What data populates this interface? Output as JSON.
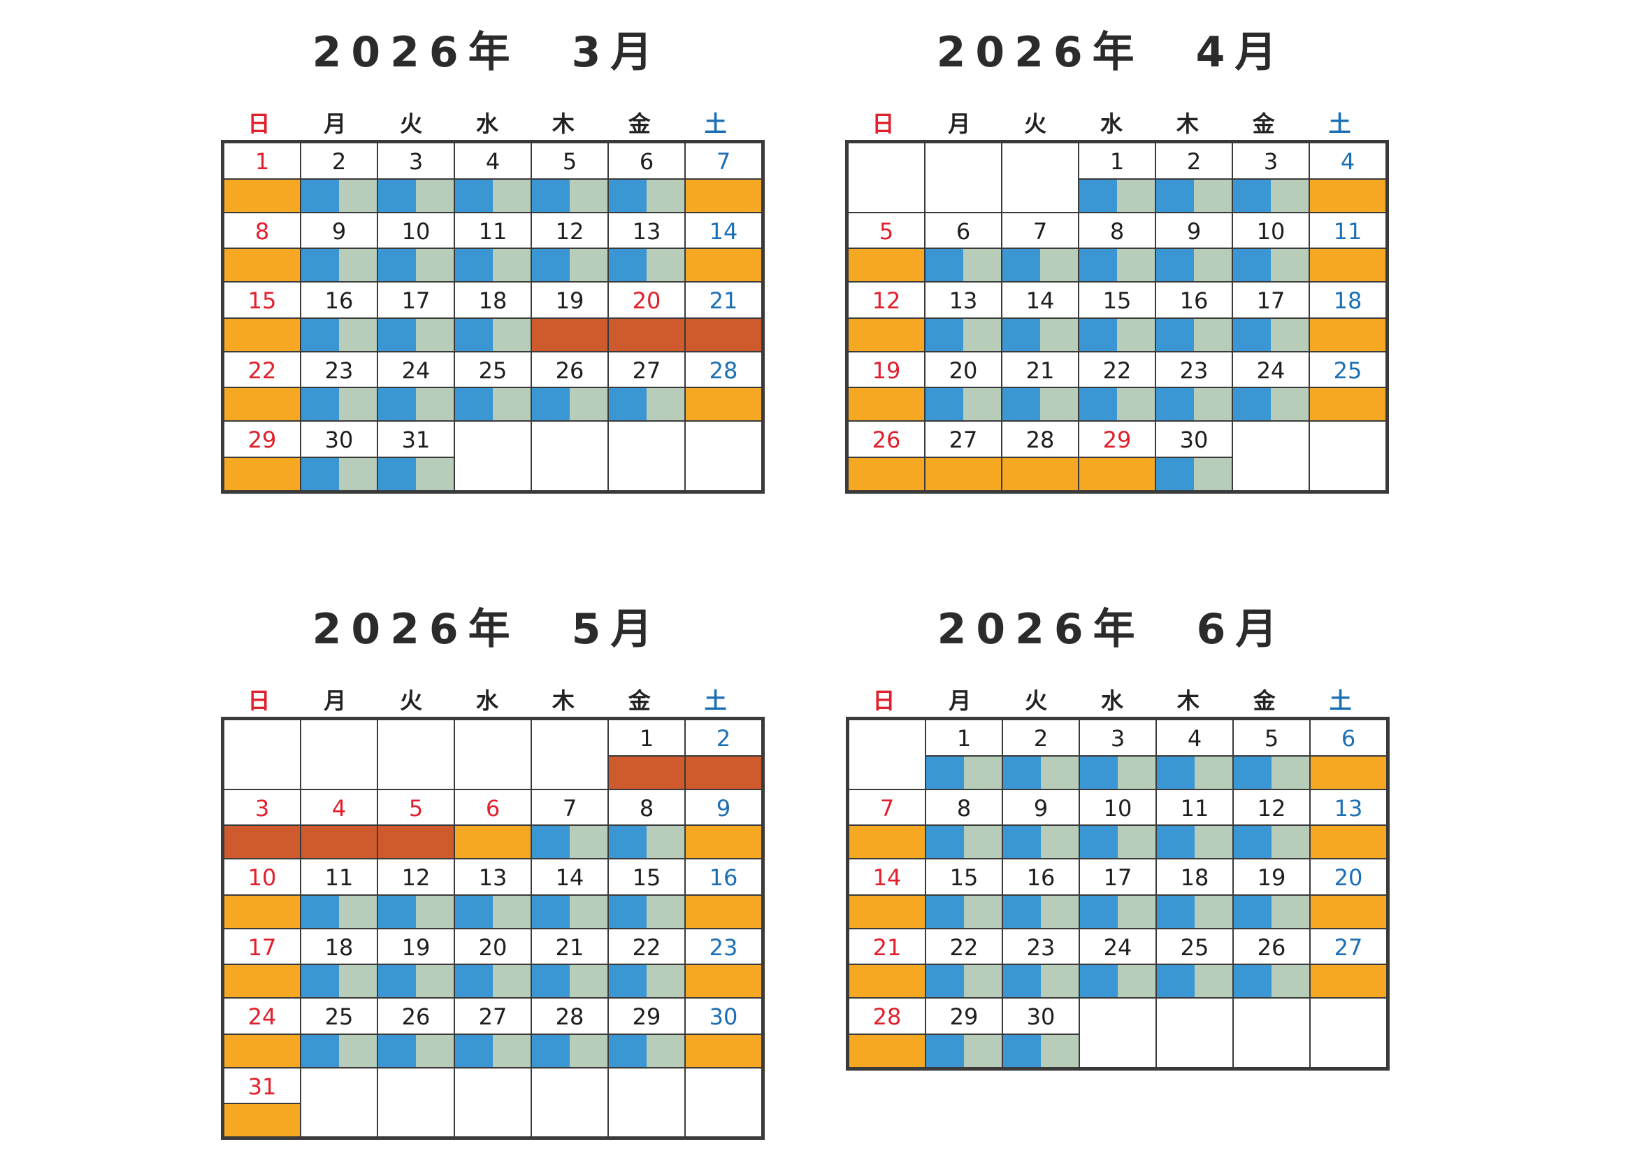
{
  "weekdays": [
    {
      "label": "日",
      "kind": "sun"
    },
    {
      "label": "月",
      "kind": ""
    },
    {
      "label": "火",
      "kind": ""
    },
    {
      "label": "水",
      "kind": ""
    },
    {
      "label": "木",
      "kind": ""
    },
    {
      "label": "金",
      "kind": ""
    },
    {
      "label": "土",
      "kind": "sat"
    }
  ],
  "colors": {
    "holiday": "#f7a823",
    "special": "#cf5a2e",
    "workday_a": "#3a97d4",
    "workday_b": "#b7cdb9",
    "sunday_text": "#e0202c",
    "saturday_text": "#1b6fb5"
  },
  "months": [
    {
      "id": "mar",
      "title": "2026年　3月",
      "days": [
        {
          "d": "1",
          "t": "sun",
          "b": "orange"
        },
        {
          "d": "2",
          "t": "",
          "b": "split"
        },
        {
          "d": "3",
          "t": "",
          "b": "split"
        },
        {
          "d": "4",
          "t": "",
          "b": "split"
        },
        {
          "d": "5",
          "t": "",
          "b": "split"
        },
        {
          "d": "6",
          "t": "",
          "b": "split"
        },
        {
          "d": "7",
          "t": "sat",
          "b": "orange"
        },
        {
          "d": "8",
          "t": "sun",
          "b": "orange"
        },
        {
          "d": "9",
          "t": "",
          "b": "split"
        },
        {
          "d": "10",
          "t": "",
          "b": "split"
        },
        {
          "d": "11",
          "t": "",
          "b": "split"
        },
        {
          "d": "12",
          "t": "",
          "b": "split"
        },
        {
          "d": "13",
          "t": "",
          "b": "split"
        },
        {
          "d": "14",
          "t": "sat",
          "b": "orange"
        },
        {
          "d": "15",
          "t": "sun",
          "b": "orange"
        },
        {
          "d": "16",
          "t": "",
          "b": "split"
        },
        {
          "d": "17",
          "t": "",
          "b": "split"
        },
        {
          "d": "18",
          "t": "",
          "b": "split"
        },
        {
          "d": "19",
          "t": "",
          "b": "red"
        },
        {
          "d": "20",
          "t": "sun",
          "b": "red"
        },
        {
          "d": "21",
          "t": "sat",
          "b": "red"
        },
        {
          "d": "22",
          "t": "sun",
          "b": "orange"
        },
        {
          "d": "23",
          "t": "",
          "b": "split"
        },
        {
          "d": "24",
          "t": "",
          "b": "split"
        },
        {
          "d": "25",
          "t": "",
          "b": "split"
        },
        {
          "d": "26",
          "t": "",
          "b": "split"
        },
        {
          "d": "27",
          "t": "",
          "b": "split"
        },
        {
          "d": "28",
          "t": "sat",
          "b": "orange"
        },
        {
          "d": "29",
          "t": "sun",
          "b": "orange"
        },
        {
          "d": "30",
          "t": "",
          "b": "split"
        },
        {
          "d": "31",
          "t": "",
          "b": "split"
        },
        {
          "d": "",
          "t": "",
          "b": ""
        },
        {
          "d": "",
          "t": "",
          "b": ""
        },
        {
          "d": "",
          "t": "",
          "b": ""
        },
        {
          "d": "",
          "t": "",
          "b": ""
        }
      ]
    },
    {
      "id": "apr",
      "title": "2026年　4月",
      "days": [
        {
          "d": "",
          "t": "",
          "b": ""
        },
        {
          "d": "",
          "t": "",
          "b": ""
        },
        {
          "d": "",
          "t": "",
          "b": ""
        },
        {
          "d": "1",
          "t": "",
          "b": "split"
        },
        {
          "d": "2",
          "t": "",
          "b": "split"
        },
        {
          "d": "3",
          "t": "",
          "b": "split"
        },
        {
          "d": "4",
          "t": "sat",
          "b": "orange"
        },
        {
          "d": "5",
          "t": "sun",
          "b": "orange"
        },
        {
          "d": "6",
          "t": "",
          "b": "split"
        },
        {
          "d": "7",
          "t": "",
          "b": "split"
        },
        {
          "d": "8",
          "t": "",
          "b": "split"
        },
        {
          "d": "9",
          "t": "",
          "b": "split"
        },
        {
          "d": "10",
          "t": "",
          "b": "split"
        },
        {
          "d": "11",
          "t": "sat",
          "b": "orange"
        },
        {
          "d": "12",
          "t": "sun",
          "b": "orange"
        },
        {
          "d": "13",
          "t": "",
          "b": "split"
        },
        {
          "d": "14",
          "t": "",
          "b": "split"
        },
        {
          "d": "15",
          "t": "",
          "b": "split"
        },
        {
          "d": "16",
          "t": "",
          "b": "split"
        },
        {
          "d": "17",
          "t": "",
          "b": "split"
        },
        {
          "d": "18",
          "t": "sat",
          "b": "orange"
        },
        {
          "d": "19",
          "t": "sun",
          "b": "orange"
        },
        {
          "d": "20",
          "t": "",
          "b": "split"
        },
        {
          "d": "21",
          "t": "",
          "b": "split"
        },
        {
          "d": "22",
          "t": "",
          "b": "split"
        },
        {
          "d": "23",
          "t": "",
          "b": "split"
        },
        {
          "d": "24",
          "t": "",
          "b": "split"
        },
        {
          "d": "25",
          "t": "sat",
          "b": "orange"
        },
        {
          "d": "26",
          "t": "sun",
          "b": "orange"
        },
        {
          "d": "27",
          "t": "",
          "b": "orange"
        },
        {
          "d": "28",
          "t": "",
          "b": "orange"
        },
        {
          "d": "29",
          "t": "sun",
          "b": "orange"
        },
        {
          "d": "30",
          "t": "",
          "b": "split"
        },
        {
          "d": "",
          "t": "",
          "b": ""
        },
        {
          "d": "",
          "t": "",
          "b": ""
        }
      ]
    },
    {
      "id": "may",
      "title": "2026年　5月",
      "days": [
        {
          "d": "",
          "t": "",
          "b": ""
        },
        {
          "d": "",
          "t": "",
          "b": ""
        },
        {
          "d": "",
          "t": "",
          "b": ""
        },
        {
          "d": "",
          "t": "",
          "b": ""
        },
        {
          "d": "",
          "t": "",
          "b": ""
        },
        {
          "d": "1",
          "t": "",
          "b": "red"
        },
        {
          "d": "2",
          "t": "sat",
          "b": "red"
        },
        {
          "d": "3",
          "t": "sun",
          "b": "red"
        },
        {
          "d": "4",
          "t": "sun",
          "b": "red"
        },
        {
          "d": "5",
          "t": "sun",
          "b": "red"
        },
        {
          "d": "6",
          "t": "sun",
          "b": "orange"
        },
        {
          "d": "7",
          "t": "",
          "b": "split"
        },
        {
          "d": "8",
          "t": "",
          "b": "split"
        },
        {
          "d": "9",
          "t": "sat",
          "b": "orange"
        },
        {
          "d": "10",
          "t": "sun",
          "b": "orange"
        },
        {
          "d": "11",
          "t": "",
          "b": "split"
        },
        {
          "d": "12",
          "t": "",
          "b": "split"
        },
        {
          "d": "13",
          "t": "",
          "b": "split"
        },
        {
          "d": "14",
          "t": "",
          "b": "split"
        },
        {
          "d": "15",
          "t": "",
          "b": "split"
        },
        {
          "d": "16",
          "t": "sat",
          "b": "orange"
        },
        {
          "d": "17",
          "t": "sun",
          "b": "orange"
        },
        {
          "d": "18",
          "t": "",
          "b": "split"
        },
        {
          "d": "19",
          "t": "",
          "b": "split"
        },
        {
          "d": "20",
          "t": "",
          "b": "split"
        },
        {
          "d": "21",
          "t": "",
          "b": "split"
        },
        {
          "d": "22",
          "t": "",
          "b": "split"
        },
        {
          "d": "23",
          "t": "sat",
          "b": "orange"
        },
        {
          "d": "24",
          "t": "sun",
          "b": "orange"
        },
        {
          "d": "25",
          "t": "",
          "b": "split"
        },
        {
          "d": "26",
          "t": "",
          "b": "split"
        },
        {
          "d": "27",
          "t": "",
          "b": "split"
        },
        {
          "d": "28",
          "t": "",
          "b": "split"
        },
        {
          "d": "29",
          "t": "",
          "b": "split"
        },
        {
          "d": "30",
          "t": "sat",
          "b": "orange"
        },
        {
          "d": "31",
          "t": "sun",
          "b": "orange"
        },
        {
          "d": "",
          "t": "",
          "b": ""
        },
        {
          "d": "",
          "t": "",
          "b": ""
        },
        {
          "d": "",
          "t": "",
          "b": ""
        },
        {
          "d": "",
          "t": "",
          "b": ""
        },
        {
          "d": "",
          "t": "",
          "b": ""
        },
        {
          "d": "",
          "t": "",
          "b": ""
        }
      ]
    },
    {
      "id": "jun",
      "title": "2026年　6月",
      "days": [
        {
          "d": "",
          "t": "",
          "b": ""
        },
        {
          "d": "1",
          "t": "",
          "b": "split"
        },
        {
          "d": "2",
          "t": "",
          "b": "split"
        },
        {
          "d": "3",
          "t": "",
          "b": "split"
        },
        {
          "d": "4",
          "t": "",
          "b": "split"
        },
        {
          "d": "5",
          "t": "",
          "b": "split"
        },
        {
          "d": "6",
          "t": "sat",
          "b": "orange"
        },
        {
          "d": "7",
          "t": "sun",
          "b": "orange"
        },
        {
          "d": "8",
          "t": "",
          "b": "split"
        },
        {
          "d": "9",
          "t": "",
          "b": "split"
        },
        {
          "d": "10",
          "t": "",
          "b": "split"
        },
        {
          "d": "11",
          "t": "",
          "b": "split"
        },
        {
          "d": "12",
          "t": "",
          "b": "split"
        },
        {
          "d": "13",
          "t": "sat",
          "b": "orange"
        },
        {
          "d": "14",
          "t": "sun",
          "b": "orange"
        },
        {
          "d": "15",
          "t": "",
          "b": "split"
        },
        {
          "d": "16",
          "t": "",
          "b": "split"
        },
        {
          "d": "17",
          "t": "",
          "b": "split"
        },
        {
          "d": "18",
          "t": "",
          "b": "split"
        },
        {
          "d": "19",
          "t": "",
          "b": "split"
        },
        {
          "d": "20",
          "t": "sat",
          "b": "orange"
        },
        {
          "d": "21",
          "t": "sun",
          "b": "orange"
        },
        {
          "d": "22",
          "t": "",
          "b": "split"
        },
        {
          "d": "23",
          "t": "",
          "b": "split"
        },
        {
          "d": "24",
          "t": "",
          "b": "split"
        },
        {
          "d": "25",
          "t": "",
          "b": "split"
        },
        {
          "d": "26",
          "t": "",
          "b": "split"
        },
        {
          "d": "27",
          "t": "sat",
          "b": "orange"
        },
        {
          "d": "28",
          "t": "sun",
          "b": "orange"
        },
        {
          "d": "29",
          "t": "",
          "b": "split"
        },
        {
          "d": "30",
          "t": "",
          "b": "split"
        },
        {
          "d": "",
          "t": "",
          "b": ""
        },
        {
          "d": "",
          "t": "",
          "b": ""
        },
        {
          "d": "",
          "t": "",
          "b": ""
        },
        {
          "d": "",
          "t": "",
          "b": ""
        }
      ]
    }
  ]
}
